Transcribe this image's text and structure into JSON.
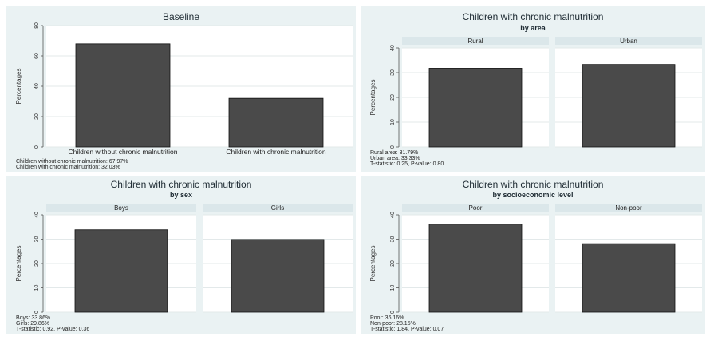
{
  "colors": {
    "panel_bg": "#eaf2f3",
    "plot_bg": "#ffffff",
    "strip_bg": "#dbe7ea",
    "bar": "#4a4a4a",
    "grid": "#e3e9ea",
    "title": "#1e2b33"
  },
  "chart_data": [
    {
      "type": "bar",
      "title": "Baseline",
      "subtitle": "",
      "ylabel": "",
      "categories": [
        "Children without chronic malnutrition",
        "Children with chronic malnutrition"
      ],
      "values": [
        67.97,
        32.03
      ],
      "ylim": [
        0,
        80
      ],
      "yticks": [
        "0",
        "20",
        "40",
        "60",
        "80"
      ],
      "panels": [],
      "notes": [
        "Children without chronic malnutrition: 67.97%",
        "Children with chronic malnutrition: 32.03%"
      ],
      "grid": true,
      "legend": "none"
    },
    {
      "type": "bar",
      "title": "Children with chronic malnutrition",
      "subtitle": "by area",
      "ylabel": "Percentages",
      "categories": [
        "Rural",
        "Urban"
      ],
      "values": [
        31.79,
        33.33
      ],
      "ylim": [
        0,
        40
      ],
      "yticks": [
        "0",
        "10",
        "20",
        "30",
        "40"
      ],
      "panels": [
        "Rural",
        "Urban"
      ],
      "notes": [
        "Rural area: 31.79%",
        "Urban area: 33.33%",
        "T-statistic: 0.25, P-value: 0.80"
      ],
      "grid": true,
      "legend": "none"
    },
    {
      "type": "bar",
      "title": "Children with chronic malnutrition",
      "subtitle": "by sex",
      "ylabel": "Percentages",
      "categories": [
        "Boys",
        "Girls"
      ],
      "values": [
        33.86,
        29.86
      ],
      "ylim": [
        0,
        40
      ],
      "yticks": [
        "0",
        "10",
        "20",
        "30",
        "40"
      ],
      "panels": [
        "Boys",
        "Girls"
      ],
      "notes": [
        "Boys: 33.86%",
        "Girls: 29.86%",
        "T-statistic: 0.92, P-value: 0.36"
      ],
      "grid": true,
      "legend": "none"
    },
    {
      "type": "bar",
      "title": "Children with chronic malnutrition",
      "subtitle": "by socioeconomic level",
      "ylabel": "Percentages",
      "categories": [
        "Poor",
        "Non-poor"
      ],
      "values": [
        36.16,
        28.15
      ],
      "ylim": [
        0,
        40
      ],
      "yticks": [
        "0",
        "10",
        "20",
        "30",
        "40"
      ],
      "panels": [
        "Poor",
        "Non-poor"
      ],
      "notes": [
        "Poor: 36.16%",
        "Non-poor: 28.15%",
        "T-statistic: 1.84, P-value: 0.07"
      ],
      "grid": true,
      "legend": "none"
    }
  ]
}
